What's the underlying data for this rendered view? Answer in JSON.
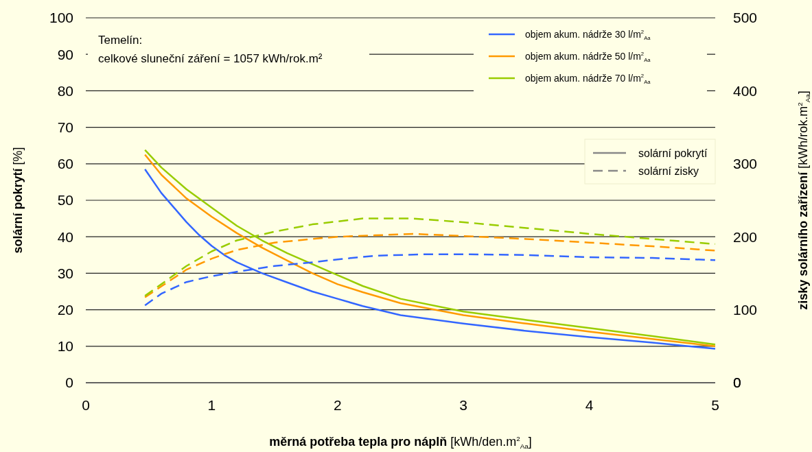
{
  "chart_data": {
    "type": "line",
    "xlabel": "měrná potřeba tepla pro náplň [kWh/den.m$^{2}$$_{Aa}$]",
    "ylabel": "solární pokrytí [%]",
    "y2label": "zisky solárního zařízení [kWh/rok.m$^{2}$$_{Aa}$]",
    "annotations": [
      "Temelín:",
      "celkové sluneční záření = 1057 kWh/rok.m²",
      "solární pokrytí",
      "solární zisky"
    ],
    "xlim": [
      0,
      5
    ],
    "xticks": [
      0,
      1,
      2,
      3,
      4,
      5
    ],
    "ylim": [
      0,
      100
    ],
    "yticks": [
      0,
      10,
      20,
      30,
      40,
      50,
      60,
      70,
      80,
      90,
      100
    ],
    "y2lim": [
      0,
      500
    ],
    "y2ticks": [
      0,
      100,
      200,
      300,
      400,
      500
    ],
    "grid": "y",
    "legend": "top right",
    "series": [
      {
        "name": "objem akum. nádrže 30 l/m$^{2}$$_{Aa}$",
        "color": "#3366ff",
        "line_style": "solid",
        "x": [
          0.47,
          0.6,
          0.7,
          0.8,
          0.9,
          1.0,
          1.1,
          1.2,
          1.4,
          1.6,
          1.8,
          2.0,
          2.2,
          2.5,
          3.0,
          3.5,
          4.0,
          4.5,
          5.0
        ],
        "values": [
          58.5,
          52,
          48,
          44,
          40.5,
          37.5,
          35,
          33,
          30,
          27.5,
          25,
          23,
          21,
          18.5,
          16.2,
          14.2,
          12.5,
          11,
          9.3
        ]
      },
      {
        "name": "objem akum. nádrže 50 l/m$^{2}$$_{Aa}$",
        "color": "#ff9900",
        "line_style": "solid",
        "x": [
          0.47,
          0.6,
          0.8,
          1.0,
          1.2,
          1.4,
          1.6,
          1.8,
          2.0,
          2.2,
          2.5,
          3.0,
          3.5,
          4.0,
          4.5,
          5.0
        ],
        "values": [
          62.5,
          57,
          50.5,
          45.5,
          41,
          37,
          33.5,
          30,
          27,
          24.8,
          21.8,
          18.5,
          16.2,
          14,
          12,
          10
        ]
      },
      {
        "name": "objem akum. nádrže 70 l/m$^{2}$$_{Aa}$",
        "color": "#99cc00",
        "line_style": "solid",
        "x": [
          0.47,
          0.6,
          0.8,
          1.0,
          1.2,
          1.4,
          1.6,
          1.8,
          2.0,
          2.2,
          2.5,
          3.0,
          3.5,
          4.0,
          4.5,
          5.0
        ],
        "values": [
          63.8,
          59,
          53,
          48,
          43,
          39,
          35.5,
          32.5,
          29.5,
          26.5,
          23,
          19.5,
          17.2,
          15,
          12.8,
          10.5
        ]
      },
      {
        "color": "#3366ff",
        "line_style": "dashed",
        "axis": "y2",
        "x": [
          0.47,
          0.6,
          0.8,
          1.0,
          1.2,
          1.5,
          1.8,
          2.0,
          2.3,
          2.7,
          3.0,
          3.5,
          4.0,
          4.5,
          5.0
        ],
        "values": [
          106,
          122,
          138,
          146,
          152,
          160,
          165,
          169,
          174,
          176,
          176,
          175,
          172,
          171,
          168
        ]
      },
      {
        "color": "#ff9900",
        "line_style": "dashed",
        "axis": "y2",
        "x": [
          0.47,
          0.6,
          0.8,
          1.0,
          1.2,
          1.5,
          1.8,
          2.0,
          2.3,
          2.6,
          3.0,
          3.5,
          4.0,
          4.5,
          5.0
        ],
        "values": [
          117,
          132,
          155,
          170,
          182,
          192,
          197,
          200,
          202,
          204,
          201,
          197,
          192,
          187,
          181
        ]
      },
      {
        "color": "#99cc00",
        "line_style": "dashed",
        "axis": "y2",
        "x": [
          0.47,
          0.6,
          0.8,
          1.0,
          1.2,
          1.5,
          1.8,
          2.0,
          2.2,
          2.6,
          3.0,
          3.5,
          4.0,
          4.5,
          5.0
        ],
        "values": [
          119,
          135,
          160,
          180,
          195,
          207,
          217,
          221,
          225,
          225,
          220,
          212,
          204,
          197,
          190
        ]
      }
    ]
  }
}
